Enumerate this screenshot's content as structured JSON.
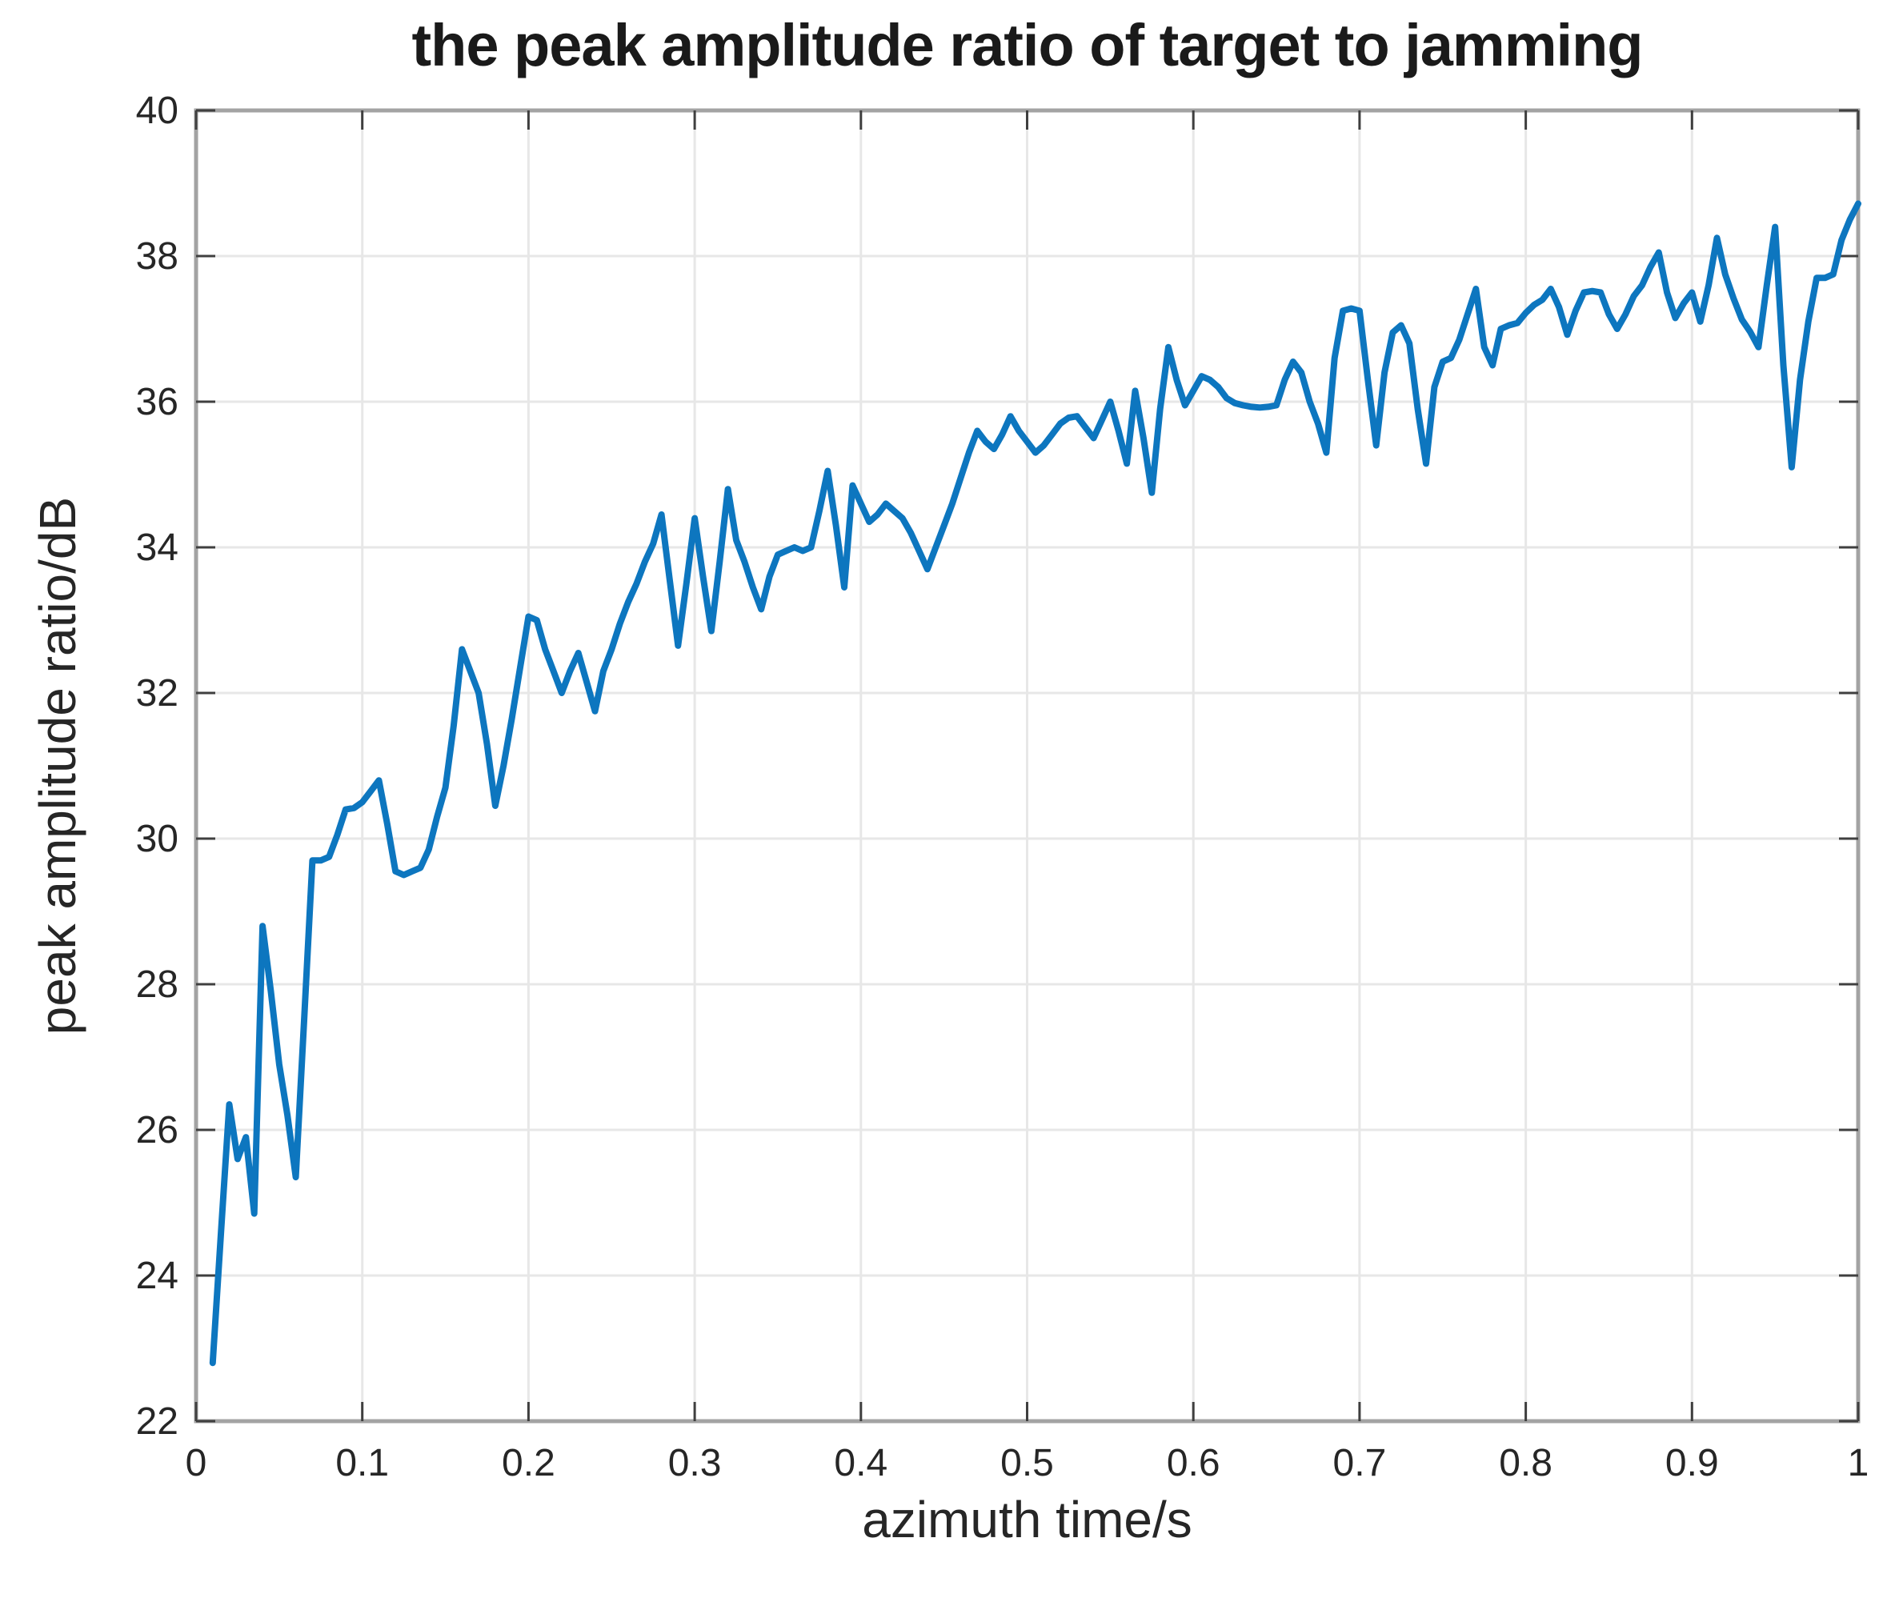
{
  "figure": {
    "title": "the peak amplitude ratio of target to jamming",
    "xlabel": "azimuth time/s",
    "ylabel": "peak amplitude ratio/dB"
  },
  "axes": {
    "x_tick_labels": [
      "0",
      "0.1",
      "0.2",
      "0.3",
      "0.4",
      "0.5",
      "0.6",
      "0.7",
      "0.8",
      "0.9",
      "1"
    ],
    "x_tick_values": [
      0,
      0.1,
      0.2,
      0.3,
      0.4,
      0.5,
      0.6,
      0.7,
      0.8,
      0.9,
      1
    ],
    "y_tick_labels": [
      "22",
      "24",
      "26",
      "28",
      "30",
      "32",
      "34",
      "36",
      "38",
      "40"
    ],
    "y_tick_values": [
      22,
      24,
      26,
      28,
      30,
      32,
      34,
      36,
      38,
      40
    ]
  },
  "style": {
    "line_color": "#0d76bf",
    "axis_box_color": "#a3a3a3",
    "tick_color": "#3f3f3f",
    "grid_color": "#e7e7e7",
    "tick_label_color": "#262626"
  },
  "chart_data": {
    "type": "line",
    "title": "the peak amplitude ratio of target to jamming",
    "xlabel": "azimuth time/s",
    "ylabel": "peak amplitude ratio/dB",
    "xlim": [
      0,
      1
    ],
    "ylim": [
      22,
      40
    ],
    "grid": true,
    "legend": "none",
    "series_name": "peak amplitude ratio",
    "x_start": 0.01,
    "x_step": 0.005,
    "values": [
      22.8,
      24.6,
      26.35,
      25.6,
      25.9,
      24.85,
      28.8,
      27.9,
      26.9,
      26.2,
      25.35,
      27.5,
      29.7,
      29.7,
      29.75,
      30.05,
      30.4,
      30.42,
      30.5,
      30.65,
      30.8,
      30.2,
      29.55,
      29.5,
      29.55,
      29.6,
      29.85,
      30.3,
      30.7,
      31.55,
      32.6,
      32.3,
      32.0,
      31.3,
      30.45,
      31.0,
      31.65,
      32.35,
      33.05,
      33.0,
      32.6,
      32.3,
      32.0,
      32.3,
      32.55,
      32.15,
      31.75,
      32.3,
      32.6,
      32.95,
      33.25,
      33.5,
      33.8,
      34.05,
      34.45,
      33.55,
      32.65,
      33.5,
      34.4,
      33.6,
      32.85,
      33.8,
      34.8,
      34.1,
      33.8,
      33.45,
      33.15,
      33.6,
      33.9,
      33.95,
      34.0,
      33.95,
      34.0,
      34.5,
      35.05,
      34.3,
      33.45,
      34.85,
      34.6,
      34.35,
      34.45,
      34.6,
      34.5,
      34.4,
      34.2,
      33.95,
      33.7,
      34.0,
      34.3,
      34.6,
      34.95,
      35.3,
      35.6,
      35.45,
      35.35,
      35.55,
      35.8,
      35.6,
      35.45,
      35.3,
      35.4,
      35.55,
      35.7,
      35.78,
      35.8,
      35.65,
      35.5,
      35.75,
      36.0,
      35.6,
      35.15,
      36.15,
      35.5,
      34.75,
      35.9,
      36.75,
      36.3,
      35.95,
      36.15,
      36.35,
      36.3,
      36.2,
      36.05,
      35.98,
      35.95,
      35.93,
      35.92,
      35.93,
      35.95,
      36.3,
      36.55,
      36.4,
      36.0,
      35.7,
      35.3,
      36.6,
      37.25,
      37.28,
      37.25,
      36.3,
      35.4,
      36.4,
      36.95,
      37.05,
      36.8,
      35.9,
      35.15,
      36.2,
      36.55,
      36.6,
      36.85,
      37.2,
      37.55,
      36.75,
      36.5,
      37.0,
      37.05,
      37.08,
      37.22,
      37.33,
      37.4,
      37.55,
      37.3,
      36.92,
      37.25,
      37.5,
      37.52,
      37.5,
      37.2,
      37.0,
      37.2,
      37.45,
      37.6,
      37.85,
      38.05,
      37.5,
      37.15,
      37.35,
      37.5,
      37.1,
      37.6,
      38.25,
      37.75,
      37.42,
      37.13,
      36.96,
      36.75,
      37.6,
      38.4,
      36.5,
      35.1,
      36.3,
      37.1,
      37.7,
      37.7,
      37.75,
      38.22,
      38.5,
      38.72
    ]
  }
}
